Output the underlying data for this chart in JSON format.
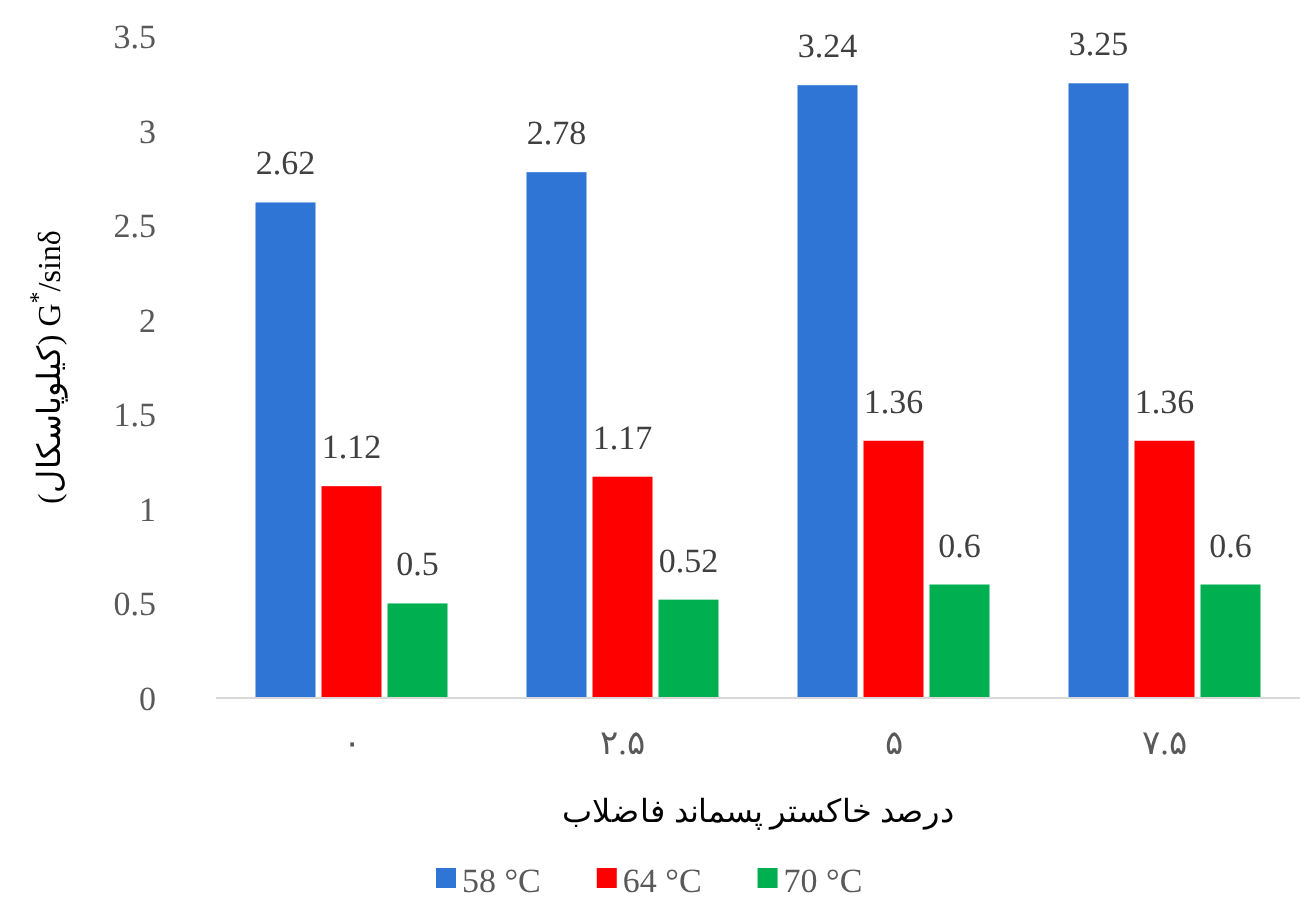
{
  "chart_data": {
    "type": "bar",
    "xlabel": "درصد خاکستر پسماند فاضلاب",
    "ylabel": "(کیلوپاسکال) G$^{*}$/sinδ",
    "categories": [
      "۰",
      "۲.۵",
      "۵",
      "۷.۵"
    ],
    "series": [
      {
        "name": "58 °C",
        "color": "#2e75d6",
        "values": [
          2.62,
          2.78,
          3.24,
          3.25
        ]
      },
      {
        "name": "64 °C",
        "color": "#ff0000",
        "values": [
          1.12,
          1.17,
          1.36,
          1.36
        ]
      },
      {
        "name": "70 °C",
        "color": "#00b050",
        "values": [
          0.5,
          0.52,
          0.6,
          0.6
        ]
      }
    ],
    "ylim": [
      0,
      3.5
    ],
    "yticks": [
      0,
      0.5,
      1,
      1.5,
      2,
      2.5,
      3,
      3.5
    ],
    "data_labels": true,
    "grid": false,
    "legend": "bottom"
  }
}
